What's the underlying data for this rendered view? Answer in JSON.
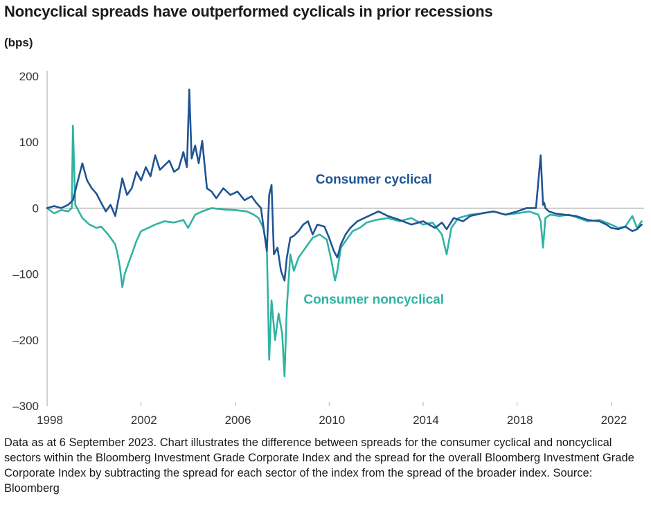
{
  "page": {
    "title": "Noncyclical spreads have outperformed cyclicals in prior recessions",
    "footnote": "Data as at 6 September 2023. Chart illustrates the difference between spreads for the consumer cyclical and noncyclical sectors within the Bloomberg Investment Grade Corporate Index and the spread for the overall Bloomberg Investment Grade Corporate Index by subtracting the spread for each sector of the index from the spread of the broader index. Source: Bloomberg"
  },
  "chart_data": {
    "type": "line",
    "title": "Noncyclical spreads have outperformed cyclicals in prior recessions",
    "ylabel": "(bps)",
    "xlabel": "",
    "xlim": [
      1998,
      2023.4
    ],
    "ylim": [
      -300,
      200
    ],
    "yticks": [
      200,
      100,
      0,
      -100,
      -200,
      -300
    ],
    "ytick_labels": [
      "200",
      "100",
      "0",
      "–100",
      "–200",
      "–300"
    ],
    "xticks": [
      1998,
      2002,
      2006,
      2010,
      2014,
      2018,
      2022
    ],
    "xtick_labels": [
      "1998",
      "2002",
      "2006",
      "2010",
      "2014",
      "2018",
      "2022"
    ],
    "zero_line": true,
    "series": [
      {
        "name": "Consumer cyclical",
        "color": "#1f5494",
        "x": [
          1998.0,
          1998.3,
          1998.6,
          1998.9,
          1999.1,
          1999.3,
          1999.5,
          1999.7,
          1999.9,
          2000.1,
          2000.3,
          2000.5,
          2000.7,
          2000.9,
          2001.1,
          2001.2,
          2001.4,
          2001.6,
          2001.8,
          2002.0,
          2002.2,
          2002.4,
          2002.6,
          2002.8,
          2003.0,
          2003.2,
          2003.4,
          2003.6,
          2003.8,
          2003.95,
          2004.05,
          2004.15,
          2004.3,
          2004.45,
          2004.6,
          2004.8,
          2005.0,
          2005.2,
          2005.5,
          2005.8,
          2006.1,
          2006.4,
          2006.7,
          2006.9,
          2007.1,
          2007.25,
          2007.35,
          2007.45,
          2007.55,
          2007.65,
          2007.8,
          2007.95,
          2008.1,
          2008.2,
          2008.35,
          2008.5,
          2008.7,
          2008.9,
          2009.1,
          2009.3,
          2009.5,
          2009.8,
          2010.0,
          2010.2,
          2010.35,
          2010.5,
          2010.7,
          2010.9,
          2011.2,
          2011.5,
          2011.8,
          2012.1,
          2012.5,
          2013.0,
          2013.5,
          2014.0,
          2014.5,
          2014.8,
          2015.0,
          2015.3,
          2015.7,
          2016.0,
          2016.5,
          2017.0,
          2017.5,
          2018.0,
          2018.4,
          2018.8,
          2019.0,
          2019.1,
          2019.15,
          2019.2,
          2019.35,
          2019.6,
          2020.0,
          2020.5,
          2021.0,
          2021.5,
          2021.8,
          2022.0,
          2022.3,
          2022.6,
          2022.9,
          2023.1,
          2023.3
        ],
        "values": [
          0,
          3,
          0,
          5,
          12,
          40,
          68,
          42,
          30,
          22,
          8,
          -5,
          5,
          -12,
          25,
          45,
          20,
          30,
          55,
          42,
          62,
          48,
          80,
          58,
          65,
          72,
          55,
          60,
          85,
          62,
          180,
          75,
          95,
          68,
          102,
          30,
          25,
          15,
          30,
          20,
          25,
          12,
          18,
          8,
          0,
          -40,
          -65,
          20,
          35,
          -70,
          -60,
          -95,
          -110,
          -75,
          -45,
          -42,
          -35,
          -25,
          -20,
          -40,
          -25,
          -28,
          -45,
          -65,
          -75,
          -55,
          -40,
          -30,
          -20,
          -15,
          -10,
          -5,
          -12,
          -18,
          -25,
          -20,
          -30,
          -22,
          -32,
          -15,
          -20,
          -12,
          -8,
          -5,
          -10,
          -5,
          0,
          0,
          80,
          5,
          8,
          0,
          -5,
          -8,
          -10,
          -12,
          -18,
          -20,
          -25,
          -30,
          -32,
          -28,
          -35,
          -32,
          -25
        ]
      },
      {
        "name": "Consumer noncyclical",
        "color": "#2fb3a3",
        "x": [
          1998.0,
          1998.3,
          1998.6,
          1998.9,
          1999.05,
          1999.1,
          1999.2,
          1999.5,
          1999.8,
          2000.1,
          2000.3,
          2000.6,
          2000.9,
          2001.0,
          2001.1,
          2001.2,
          2001.3,
          2001.5,
          2001.8,
          2002.0,
          2002.3,
          2002.6,
          2003.0,
          2003.4,
          2003.8,
          2004.0,
          2004.3,
          2004.6,
          2005.0,
          2005.5,
          2006.0,
          2006.5,
          2006.8,
          2007.0,
          2007.2,
          2007.35,
          2007.45,
          2007.55,
          2007.7,
          2007.85,
          2008.0,
          2008.1,
          2008.2,
          2008.35,
          2008.5,
          2008.7,
          2009.0,
          2009.3,
          2009.6,
          2009.9,
          2010.1,
          2010.25,
          2010.35,
          2010.5,
          2010.8,
          2011.0,
          2011.3,
          2011.6,
          2012.0,
          2012.5,
          2013.0,
          2013.5,
          2014.0,
          2014.4,
          2014.8,
          2015.0,
          2015.2,
          2015.5,
          2016.0,
          2016.5,
          2017.0,
          2017.5,
          2018.0,
          2018.5,
          2018.9,
          2019.0,
          2019.1,
          2019.2,
          2019.4,
          2019.8,
          2020.2,
          2020.6,
          2021.0,
          2021.5,
          2022.0,
          2022.3,
          2022.6,
          2022.9,
          2023.1,
          2023.3
        ],
        "values": [
          0,
          -8,
          -3,
          -5,
          0,
          125,
          5,
          -15,
          -25,
          -30,
          -28,
          -40,
          -55,
          -70,
          -90,
          -120,
          -100,
          -80,
          -50,
          -35,
          -30,
          -25,
          -20,
          -22,
          -18,
          -30,
          -10,
          -5,
          0,
          -2,
          -3,
          -5,
          -10,
          -15,
          -30,
          -60,
          -230,
          -140,
          -200,
          -160,
          -190,
          -255,
          -150,
          -70,
          -95,
          -75,
          -60,
          -45,
          -40,
          -48,
          -80,
          -110,
          -95,
          -60,
          -45,
          -35,
          -30,
          -22,
          -18,
          -15,
          -20,
          -15,
          -25,
          -22,
          -40,
          -70,
          -30,
          -15,
          -10,
          -8,
          -5,
          -10,
          -8,
          -5,
          -10,
          -20,
          -60,
          -15,
          -10,
          -12,
          -10,
          -15,
          -20,
          -18,
          -25,
          -30,
          -28,
          -12,
          -30,
          -20
        ]
      }
    ],
    "annotations": [
      {
        "text": "Consumer cyclical",
        "series": "Consumer cyclical",
        "at": [
          2011.9,
          37
        ]
      },
      {
        "text": "Consumer noncyclical",
        "series": "Consumer noncyclical",
        "at": [
          2011.9,
          -145
        ]
      }
    ]
  }
}
